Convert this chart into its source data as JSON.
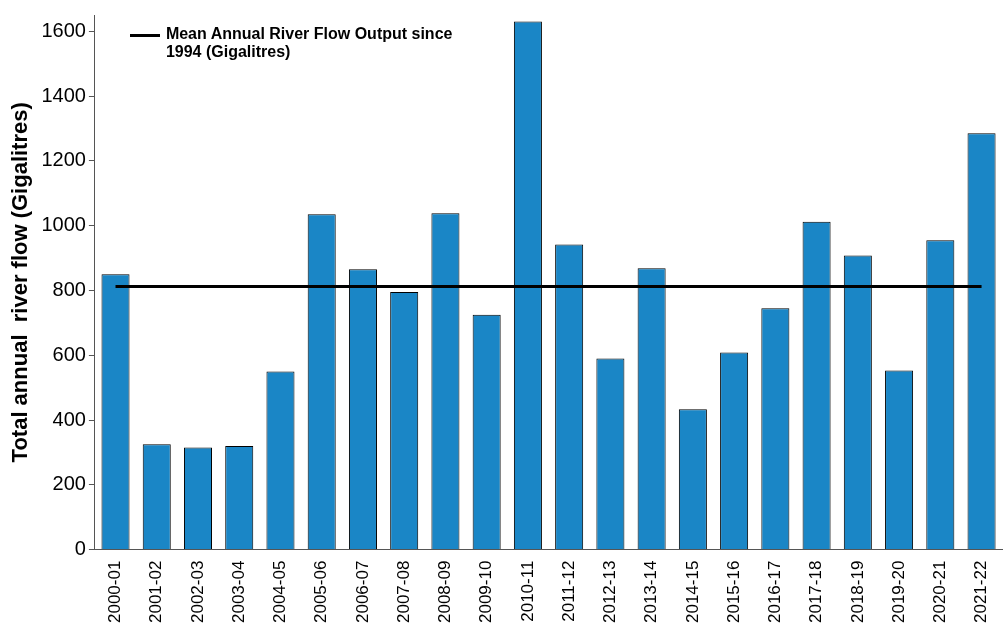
{
  "chart_data": {
    "type": "bar",
    "ylabel": "Total annual  river flow (Gigalitres)",
    "categories": [
      "2000-01",
      "2001-02",
      "2002-03",
      "2003-04",
      "2004-05",
      "2005-06",
      "2006-07",
      "2007-08",
      "2008-09",
      "2009-10",
      "2010-11",
      "2011-12",
      "2012-13",
      "2013-14",
      "2014-15",
      "2015-16",
      "2016-17",
      "2017-18",
      "2018-19",
      "2019-20",
      "2020-21",
      "2021-22"
    ],
    "series": [
      {
        "color": "#1a86c6",
        "values": [
          850,
          325,
          315,
          320,
          550,
          1035,
          865,
          795,
          1038,
          725,
          1630,
          942,
          590,
          868,
          433,
          608,
          745,
          1012,
          908,
          553,
          955,
          1285
        ]
      },
      {
        "type": "line",
        "name": "Mean Annual River Flow Output since 1994 (Gigalitres)",
        "color": "#000000",
        "values": [
          812,
          812,
          812,
          812,
          812,
          812,
          812,
          812,
          812,
          812,
          812,
          812,
          812,
          812,
          812,
          812,
          812,
          812,
          812,
          812,
          812,
          812
        ]
      }
    ],
    "ylim": [
      0,
      1650
    ],
    "yticks": [
      0,
      200,
      400,
      600,
      800,
      1000,
      1200,
      1400,
      1600
    ],
    "grid": false,
    "legend": "top left",
    "marker": "none"
  }
}
